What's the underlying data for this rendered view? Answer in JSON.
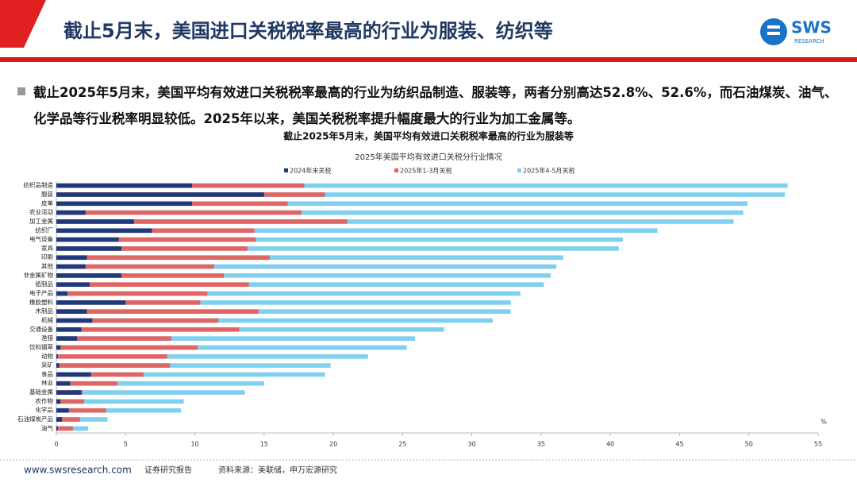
{
  "header": {
    "title": "截止5月末，美国进口关税税率最高的行业为服装、纺织等",
    "logo": "SWS",
    "logo_sub": "RESEARCH"
  },
  "bullet": "截止2025年5月末，美国平均有效进口关税税率最高的行业为纺织品制造、服装等，两者分别高达52.8%、52.6%，而石油煤炭、油气、化学品等行业税率明显较低。2025年以来，美国关税税率提升幅度最大的行业为加工金属等。",
  "chart_data": {
    "type": "bar",
    "orientation": "horizontal",
    "title": "截止2025年5月末，美国平均有效进口关税税率最高的行业为服装等",
    "subtitle": "2025年美国平均有效进口关税分行业情况",
    "unit": "%",
    "legend": "top",
    "categories": [
      "纺织品制造",
      "服装",
      "皮革",
      "农业活动",
      "加工金属",
      "纺织厂",
      "电气设备",
      "家具",
      "印刷",
      "其他",
      "非金属矿物",
      "纸制品",
      "电子产品",
      "橡胶塑料",
      "木制品",
      "机械",
      "交通设备",
      "渔猎",
      "饮料烟草",
      "动物",
      "采矿",
      "食品",
      "林业",
      "基础金属",
      "农作物",
      "化学品",
      "石油煤炭产品",
      "油气"
    ],
    "series": [
      {
        "name": "2025年4-5月关税",
        "color": "#7fd0ef",
        "values": [
          52.8,
          52.6,
          49.9,
          49.6,
          48.9,
          43.4,
          40.9,
          40.6,
          36.6,
          36.1,
          35.7,
          35.2,
          33.5,
          32.8,
          32.8,
          31.5,
          28.0,
          25.9,
          25.3,
          22.5,
          19.8,
          19.4,
          15.0,
          13.6,
          9.2,
          9.0,
          3.7,
          2.3
        ]
      },
      {
        "name": "2025年1-3月关税",
        "color": "#e06666",
        "values": [
          17.9,
          19.4,
          16.7,
          17.7,
          21.0,
          14.3,
          14.4,
          13.8,
          15.4,
          11.4,
          12.1,
          13.9,
          10.9,
          10.4,
          14.6,
          11.7,
          13.2,
          8.3,
          10.2,
          8.0,
          8.2,
          6.3,
          4.4,
          1.9,
          2.0,
          3.6,
          1.7,
          1.2
        ]
      },
      {
        "name": "2024年末关税",
        "color": "#1f3a7a",
        "values": [
          9.8,
          15.0,
          9.8,
          2.1,
          5.6,
          6.9,
          4.5,
          4.7,
          2.2,
          2.1,
          4.7,
          2.4,
          0.8,
          5.0,
          2.2,
          2.6,
          1.8,
          1.5,
          0.3,
          0.1,
          0.2,
          2.5,
          1.0,
          1.8,
          0.3,
          0.9,
          0.4,
          0.1
        ]
      }
    ],
    "legend_order": [
      2,
      1,
      0
    ],
    "xlim": [
      0,
      55
    ],
    "xticks": [
      0,
      5,
      10,
      15,
      20,
      25,
      30,
      35,
      40,
      45,
      50,
      55
    ]
  },
  "footer": {
    "site": "www.swsresearch.com",
    "type": "证券研究报告",
    "source": "资料来源：美联储，申万宏源研究"
  }
}
